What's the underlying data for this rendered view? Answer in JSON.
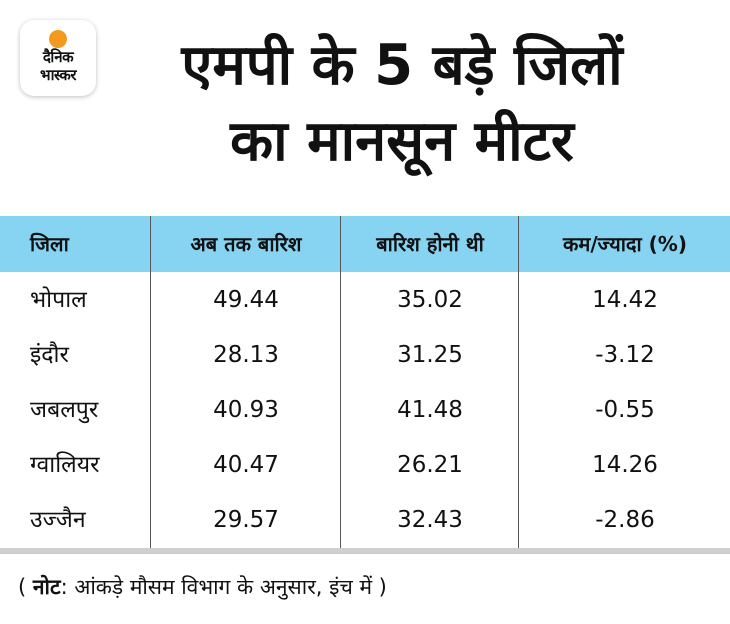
{
  "logo": {
    "line1": "दैनिक",
    "line2": "भास्कर"
  },
  "title": {
    "line1": "एमपी के 5 बड़े जिलों",
    "line2": "का मानसून मीटर"
  },
  "colors": {
    "header_bg": "#87d3f2",
    "logo_sun": "#f39a1e"
  },
  "chart_data": {
    "type": "table",
    "columns": [
      "जिला",
      "अब तक बारिश",
      "बारिश होनी थी",
      "कम/ज्यादा (%)"
    ],
    "rows": [
      [
        "भोपाल",
        "49.44",
        "35.02",
        "14.42"
      ],
      [
        "इंदौर",
        "28.13",
        "31.25",
        "-3.12"
      ],
      [
        "जबलपुर",
        "40.93",
        "41.48",
        "-0.55"
      ],
      [
        "ग्वालियर",
        "40.47",
        "26.21",
        "14.26"
      ],
      [
        "उज्जैन",
        "29.57",
        "32.43",
        "-2.86"
      ]
    ]
  },
  "note": {
    "open": "( ",
    "label": "नोट",
    "text": ": आंकड़े मौसम विभाग के अनुसार, इंच में )"
  }
}
